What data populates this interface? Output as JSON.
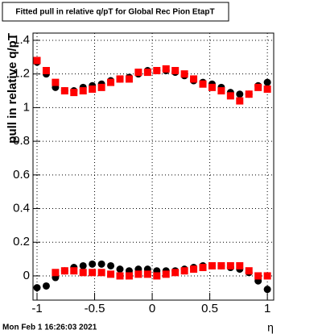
{
  "chart_data": {
    "type": "scatter",
    "title": "Fitted pull in relative q/pT for Global Rec Pion EtapT",
    "ylabel": "pull in relative q/pT",
    "xlabel": "η",
    "footer": "Mon Feb  1 16:26:03 2021",
    "x": [
      -1.0,
      -0.92,
      -0.84,
      -0.76,
      -0.68,
      -0.6,
      -0.52,
      -0.44,
      -0.36,
      -0.28,
      -0.2,
      -0.12,
      -0.04,
      0.04,
      0.12,
      0.2,
      0.28,
      0.36,
      0.44,
      0.52,
      0.6,
      0.68,
      0.76,
      0.84,
      0.92,
      1.0
    ],
    "series": [
      {
        "color": "#000000",
        "marker": "circle",
        "values": [
          1.27,
          1.2,
          1.12,
          1.1,
          1.1,
          1.12,
          1.13,
          1.14,
          1.16,
          1.17,
          1.18,
          1.2,
          1.22,
          1.22,
          1.22,
          1.21,
          1.19,
          1.16,
          1.15,
          1.14,
          1.12,
          1.09,
          1.08,
          1.08,
          1.13,
          1.15
        ]
      },
      {
        "color": "#ff0000",
        "marker": "square",
        "values": [
          1.28,
          1.22,
          1.15,
          1.1,
          1.09,
          1.1,
          1.11,
          1.12,
          1.15,
          1.17,
          1.17,
          1.21,
          1.21,
          1.22,
          1.23,
          1.22,
          1.2,
          1.17,
          1.14,
          1.12,
          1.1,
          1.07,
          1.04,
          1.08,
          1.12,
          1.11
        ]
      },
      {
        "color": "#000000",
        "marker": "circle",
        "values": [
          -0.07,
          -0.06,
          -0.01,
          0.03,
          0.05,
          0.06,
          0.07,
          0.07,
          0.06,
          0.04,
          0.03,
          0.04,
          0.04,
          0.03,
          0.03,
          0.03,
          0.04,
          0.05,
          0.06,
          0.06,
          0.06,
          0.05,
          0.04,
          0.02,
          -0.03,
          -0.08
        ]
      },
      {
        "color": "#ff0000",
        "marker": "square",
        "values": [
          null,
          null,
          0.02,
          0.03,
          0.03,
          0.02,
          0.02,
          0.02,
          0.01,
          0.0,
          0.0,
          0.01,
          0.01,
          0.0,
          0.01,
          0.02,
          0.03,
          0.04,
          0.05,
          0.06,
          0.06,
          0.06,
          0.06,
          0.03,
          0.0,
          0.0
        ]
      }
    ],
    "xlim": [
      -1.035,
      1.055
    ],
    "ylim": [
      -0.144,
      1.443
    ],
    "xticks": [
      -1,
      -0.5,
      0,
      0.5,
      1
    ],
    "yticks": [
      0,
      0.2,
      0.4,
      0.6,
      0.8,
      1,
      1.2,
      1.4
    ],
    "grid": true
  }
}
